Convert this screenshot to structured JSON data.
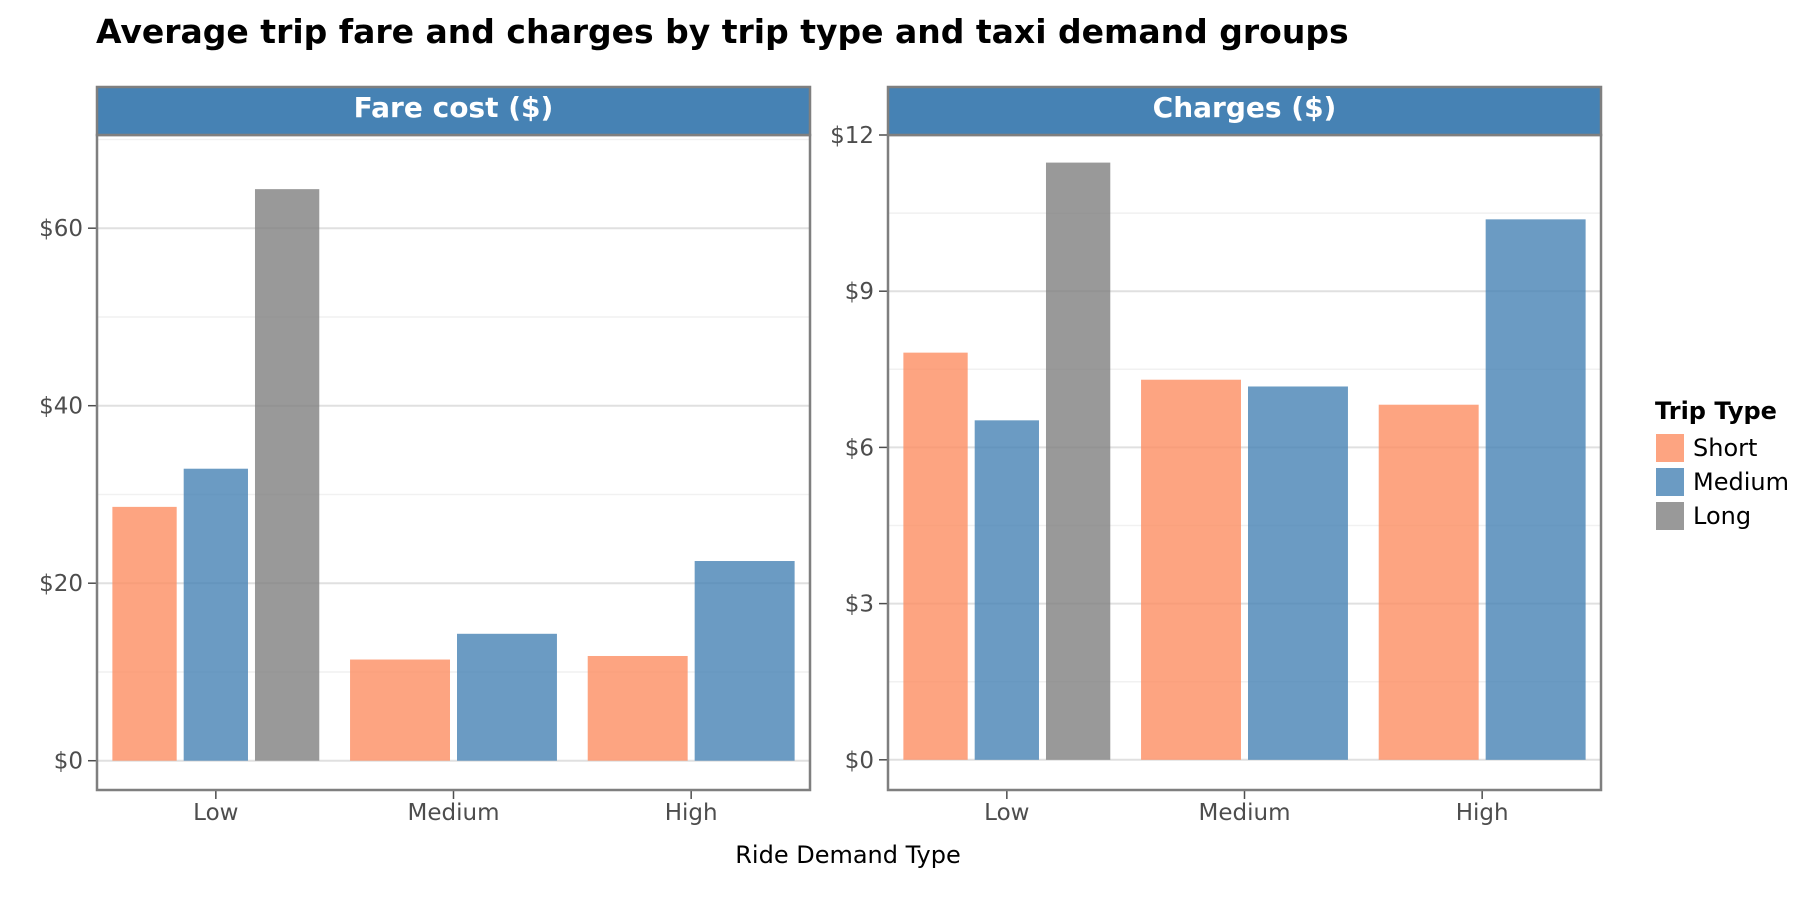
{
  "chart_data": {
    "type": "bar",
    "title": "Average trip fare and charges by trip type and taxi demand groups",
    "xlabel": "Ride Demand Type",
    "categories": [
      "Low",
      "Medium",
      "High"
    ],
    "legend": {
      "title": "Trip Type",
      "placement": "right",
      "entries": [
        {
          "name": "Short",
          "color": "#fc8d62"
        },
        {
          "name": "Medium",
          "color": "#4682b4"
        },
        {
          "name": "Long",
          "color": "#808080"
        }
      ]
    },
    "grid": true,
    "panels": [
      {
        "strip": "Fare cost ($)",
        "ylim": [
          -3.3,
          70.5
        ],
        "yticks": [
          0,
          20,
          40,
          60
        ],
        "ytick_labels": [
          "$0",
          "$20",
          "$40",
          "$60"
        ],
        "series": [
          {
            "name": "Short",
            "values": [
              28.6,
              11.4,
              11.8
            ]
          },
          {
            "name": "Medium",
            "values": [
              32.9,
              14.3,
              22.5
            ]
          },
          {
            "name": "Long",
            "values": [
              64.4,
              null,
              null
            ]
          }
        ]
      },
      {
        "strip": "Charges ($)",
        "ylim": [
          -0.58,
          12.0
        ],
        "yticks": [
          0,
          3,
          6,
          9,
          12
        ],
        "ytick_labels": [
          "$0",
          "$3",
          "$6",
          "$9",
          "$12"
        ],
        "series": [
          {
            "name": "Short",
            "values": [
              7.82,
              7.3,
              6.82
            ]
          },
          {
            "name": "Medium",
            "values": [
              6.52,
              7.17,
              10.38
            ]
          },
          {
            "name": "Long",
            "values": [
              11.47,
              null,
              null
            ]
          }
        ]
      }
    ]
  }
}
